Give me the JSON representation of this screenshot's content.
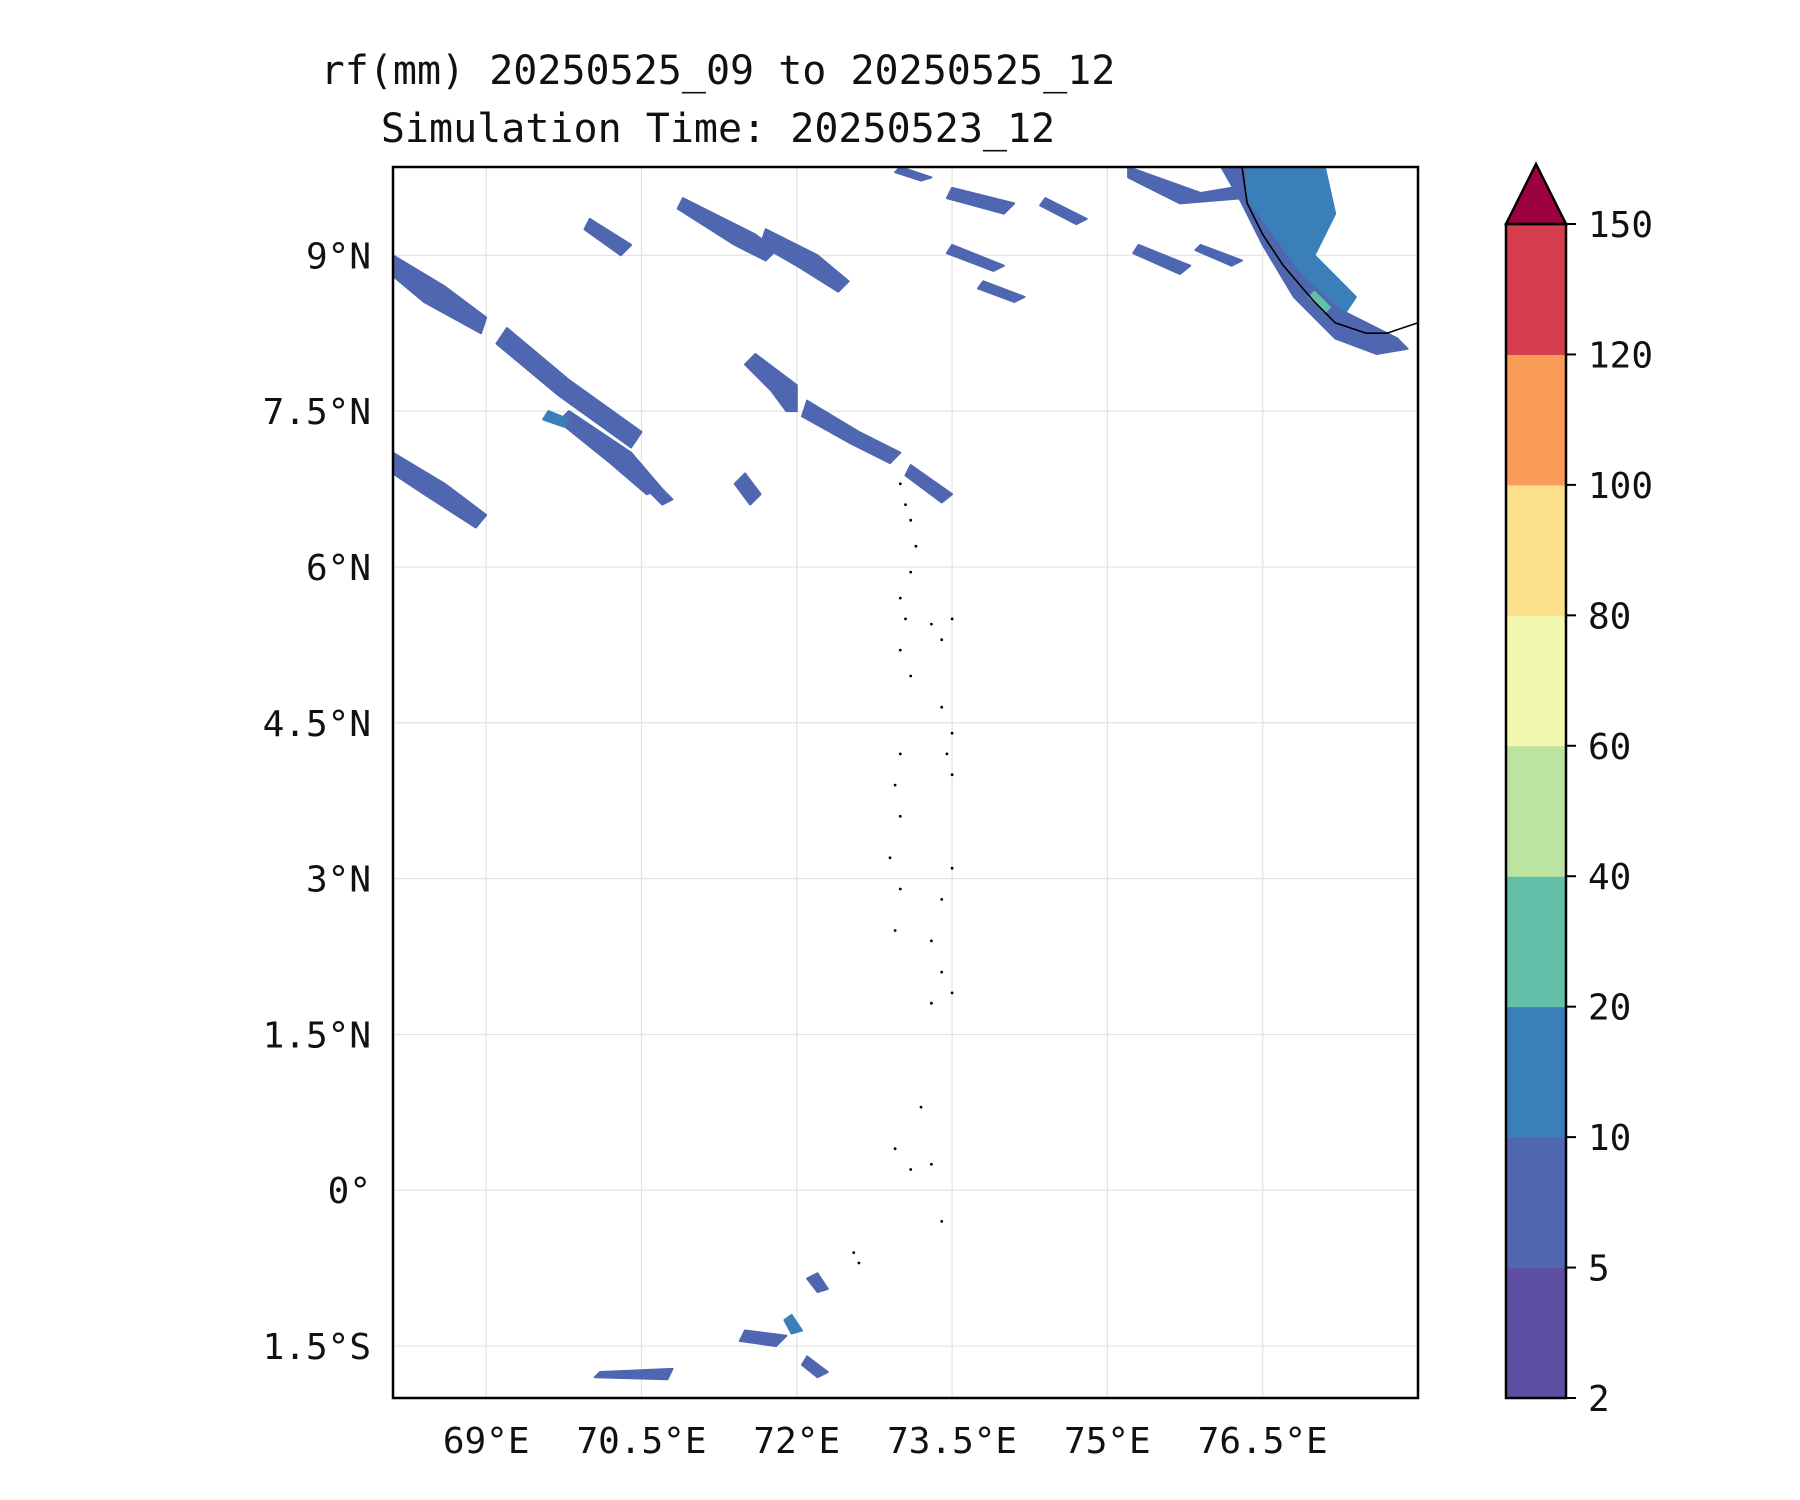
{
  "title": {
    "line1": "rf(mm) 20250525_09 to 20250525_12",
    "line2": "Simulation Time: 20250523_12"
  },
  "map": {
    "lon_range": [
      68.1,
      78.0
    ],
    "lat_range": [
      -2.0,
      9.85
    ],
    "lon_ticks": [
      {
        "value": 69.0,
        "label": "69°E"
      },
      {
        "value": 70.5,
        "label": "70.5°E"
      },
      {
        "value": 72.0,
        "label": "72°E"
      },
      {
        "value": 73.5,
        "label": "73.5°E"
      },
      {
        "value": 75.0,
        "label": "75°E"
      },
      {
        "value": 76.5,
        "label": "76.5°E"
      }
    ],
    "lat_ticks": [
      {
        "value": 9.0,
        "label": "9°N"
      },
      {
        "value": 7.5,
        "label": "7.5°N"
      },
      {
        "value": 6.0,
        "label": "6°N"
      },
      {
        "value": 4.5,
        "label": "4.5°N"
      },
      {
        "value": 3.0,
        "label": "3°N"
      },
      {
        "value": 1.5,
        "label": "1.5°N"
      },
      {
        "value": 0.0,
        "label": "0°"
      },
      {
        "value": -1.5,
        "label": "1.5°S"
      }
    ],
    "gridlines": true
  },
  "colorbar": {
    "levels": [
      "2",
      "5",
      "10",
      "20",
      "40",
      "60",
      "80",
      "100",
      "120",
      "150"
    ],
    "colors": [
      "#5e4fa2",
      "#4f66b0",
      "#3a7fb9",
      "#63bfa8",
      "#bde3a0",
      "#f2f8ad",
      "#fde08b",
      "#f99c57",
      "#d63e4e"
    ],
    "extend_color": "#9e0142",
    "extend": "max"
  },
  "rain_bands": [
    {
      "band": "5-10",
      "path": [
        [
          68.1,
          9.0
        ],
        [
          68.6,
          8.7
        ],
        [
          69.0,
          8.4
        ],
        [
          68.95,
          8.25
        ],
        [
          68.4,
          8.55
        ],
        [
          68.1,
          8.8
        ]
      ]
    },
    {
      "band": "5-10",
      "path": [
        [
          68.1,
          7.1
        ],
        [
          68.6,
          6.8
        ],
        [
          69.0,
          6.5
        ],
        [
          68.9,
          6.38
        ],
        [
          68.4,
          6.7
        ],
        [
          68.1,
          6.9
        ]
      ]
    },
    {
      "band": "5-10",
      "path": [
        [
          69.2,
          8.3
        ],
        [
          69.8,
          7.8
        ],
        [
          70.5,
          7.3
        ],
        [
          70.4,
          7.15
        ],
        [
          69.7,
          7.65
        ],
        [
          69.1,
          8.15
        ]
      ]
    },
    {
      "band": "5-10",
      "path": [
        [
          69.8,
          7.5
        ],
        [
          70.4,
          7.1
        ],
        [
          70.7,
          6.75
        ],
        [
          70.55,
          6.7
        ],
        [
          70.2,
          7.0
        ],
        [
          69.7,
          7.4
        ]
      ]
    },
    {
      "band": "5-10",
      "path": [
        [
          70.0,
          9.35
        ],
        [
          70.4,
          9.1
        ],
        [
          70.3,
          9.0
        ],
        [
          69.95,
          9.25
        ]
      ]
    },
    {
      "band": "5-10",
      "path": [
        [
          70.9,
          9.55
        ],
        [
          71.6,
          9.2
        ],
        [
          71.8,
          9.05
        ],
        [
          71.7,
          8.95
        ],
        [
          71.4,
          9.1
        ],
        [
          70.85,
          9.45
        ]
      ]
    },
    {
      "band": "5-10",
      "path": [
        [
          71.7,
          9.25
        ],
        [
          72.2,
          9.0
        ],
        [
          72.5,
          8.75
        ],
        [
          72.4,
          8.65
        ],
        [
          72.0,
          8.9
        ],
        [
          71.65,
          9.1
        ]
      ]
    },
    {
      "band": "5-10",
      "path": [
        [
          71.6,
          8.05
        ],
        [
          72.0,
          7.75
        ],
        [
          72.0,
          7.5
        ],
        [
          71.9,
          7.5
        ],
        [
          71.75,
          7.7
        ],
        [
          71.5,
          7.95
        ]
      ]
    },
    {
      "band": "5-10",
      "path": [
        [
          72.1,
          7.6
        ],
        [
          72.6,
          7.3
        ],
        [
          73.0,
          7.1
        ],
        [
          72.9,
          7.0
        ],
        [
          72.5,
          7.2
        ],
        [
          72.05,
          7.45
        ]
      ]
    },
    {
      "band": "5-10",
      "path": [
        [
          73.1,
          6.98
        ],
        [
          73.5,
          6.7
        ],
        [
          73.4,
          6.62
        ],
        [
          73.05,
          6.88
        ]
      ]
    },
    {
      "band": "5-10",
      "path": [
        [
          71.5,
          6.9
        ],
        [
          71.65,
          6.7
        ],
        [
          71.55,
          6.6
        ],
        [
          71.4,
          6.8
        ]
      ]
    },
    {
      "band": "5-10",
      "path": [
        [
          70.5,
          6.95
        ],
        [
          70.8,
          6.65
        ],
        [
          70.7,
          6.6
        ],
        [
          70.45,
          6.85
        ]
      ]
    },
    {
      "band": "5-10",
      "path": [
        [
          73.5,
          9.65
        ],
        [
          74.1,
          9.5
        ],
        [
          74.0,
          9.4
        ],
        [
          73.45,
          9.55
        ]
      ]
    },
    {
      "band": "5-10",
      "path": [
        [
          73.0,
          9.85
        ],
        [
          73.3,
          9.75
        ],
        [
          73.2,
          9.72
        ],
        [
          72.95,
          9.8
        ]
      ]
    },
    {
      "band": "5-10",
      "path": [
        [
          74.4,
          9.55
        ],
        [
          74.8,
          9.35
        ],
        [
          74.7,
          9.3
        ],
        [
          74.35,
          9.48
        ]
      ]
    },
    {
      "band": "5-10",
      "path": [
        [
          73.5,
          9.1
        ],
        [
          74.0,
          8.9
        ],
        [
          73.9,
          8.85
        ],
        [
          73.45,
          9.02
        ]
      ]
    },
    {
      "band": "5-10",
      "path": [
        [
          73.8,
          8.75
        ],
        [
          74.2,
          8.6
        ],
        [
          74.1,
          8.55
        ],
        [
          73.75,
          8.68
        ]
      ]
    },
    {
      "band": "5-10",
      "path": [
        [
          75.3,
          9.1
        ],
        [
          75.8,
          8.9
        ],
        [
          75.7,
          8.82
        ],
        [
          75.25,
          9.02
        ]
      ]
    },
    {
      "band": "5-10",
      "path": [
        [
          75.9,
          9.1
        ],
        [
          76.3,
          8.95
        ],
        [
          76.2,
          8.9
        ],
        [
          75.85,
          9.05
        ]
      ]
    },
    {
      "band": "5-10",
      "path": [
        [
          72.2,
          -0.8
        ],
        [
          72.3,
          -0.95
        ],
        [
          72.2,
          -0.98
        ],
        [
          72.1,
          -0.85
        ]
      ]
    },
    {
      "band": "5-10",
      "path": [
        [
          72.1,
          -1.6
        ],
        [
          72.3,
          -1.75
        ],
        [
          72.2,
          -1.8
        ],
        [
          72.05,
          -1.68
        ]
      ]
    },
    {
      "band": "5-10",
      "path": [
        [
          70.1,
          -1.75
        ],
        [
          70.8,
          -1.72
        ],
        [
          70.75,
          -1.82
        ],
        [
          70.05,
          -1.8
        ]
      ]
    },
    {
      "band": "5-10",
      "path": [
        [
          71.5,
          -1.35
        ],
        [
          71.9,
          -1.4
        ],
        [
          71.8,
          -1.5
        ],
        [
          71.45,
          -1.45
        ]
      ]
    },
    {
      "band": "5-10",
      "path": [
        [
          75.2,
          9.85
        ],
        [
          75.9,
          9.6
        ],
        [
          76.5,
          9.7
        ],
        [
          76.3,
          9.55
        ],
        [
          75.7,
          9.5
        ],
        [
          75.2,
          9.75
        ]
      ]
    },
    {
      "band": "5-10",
      "path": [
        [
          76.1,
          9.85
        ],
        [
          76.8,
          9.85
        ],
        [
          76.9,
          9.4
        ],
        [
          77.0,
          8.9
        ],
        [
          77.3,
          8.45
        ],
        [
          77.8,
          8.2
        ],
        [
          77.9,
          8.1
        ],
        [
          77.6,
          8.05
        ],
        [
          77.2,
          8.2
        ],
        [
          76.8,
          8.6
        ],
        [
          76.5,
          9.1
        ],
        [
          76.3,
          9.5
        ]
      ]
    },
    {
      "band": "10-20",
      "path": [
        [
          76.35,
          9.85
        ],
        [
          77.1,
          9.85
        ],
        [
          77.2,
          9.4
        ],
        [
          77.0,
          9.0
        ],
        [
          77.4,
          8.6
        ],
        [
          77.3,
          8.45
        ],
        [
          76.9,
          8.8
        ],
        [
          76.6,
          9.2
        ],
        [
          76.35,
          9.55
        ]
      ]
    },
    {
      "band": "10-20",
      "path": [
        [
          69.6,
          7.5
        ],
        [
          69.8,
          7.42
        ],
        [
          69.75,
          7.35
        ],
        [
          69.55,
          7.42
        ]
      ]
    },
    {
      "band": "10-20",
      "path": [
        [
          71.95,
          -1.2
        ],
        [
          72.05,
          -1.35
        ],
        [
          71.95,
          -1.38
        ],
        [
          71.88,
          -1.25
        ]
      ]
    },
    {
      "band": "20-40",
      "path": [
        [
          77.0,
          8.65
        ],
        [
          77.15,
          8.5
        ],
        [
          77.1,
          8.45
        ],
        [
          76.95,
          8.6
        ]
      ]
    }
  ],
  "coastline": [
    [
      [
        76.3,
        9.85
      ],
      [
        76.35,
        9.5
      ],
      [
        76.5,
        9.2
      ],
      [
        76.7,
        8.9
      ],
      [
        77.0,
        8.55
      ],
      [
        77.2,
        8.35
      ],
      [
        77.5,
        8.25
      ],
      [
        77.7,
        8.25
      ],
      [
        78.0,
        8.35
      ]
    ]
  ],
  "islands": [
    [
      73.0,
      6.8
    ],
    [
      73.05,
      6.6
    ],
    [
      73.1,
      6.45
    ],
    [
      73.15,
      6.2
    ],
    [
      73.1,
      5.95
    ],
    [
      73.0,
      5.7
    ],
    [
      73.05,
      5.5
    ],
    [
      73.3,
      5.45
    ],
    [
      73.4,
      5.3
    ],
    [
      73.5,
      5.5
    ],
    [
      73.0,
      5.2
    ],
    [
      73.1,
      4.95
    ],
    [
      73.4,
      4.65
    ],
    [
      73.5,
      4.4
    ],
    [
      73.45,
      4.2
    ],
    [
      73.5,
      4.0
    ],
    [
      73.0,
      4.2
    ],
    [
      72.95,
      3.9
    ],
    [
      73.0,
      3.6
    ],
    [
      72.9,
      3.2
    ],
    [
      73.0,
      2.9
    ],
    [
      73.4,
      2.8
    ],
    [
      73.5,
      3.1
    ],
    [
      72.95,
      2.5
    ],
    [
      73.3,
      2.4
    ],
    [
      73.4,
      2.1
    ],
    [
      73.5,
      1.9
    ],
    [
      73.3,
      1.8
    ],
    [
      73.2,
      0.8
    ],
    [
      72.95,
      0.4
    ],
    [
      73.1,
      0.2
    ],
    [
      73.3,
      0.25
    ],
    [
      72.55,
      -0.6
    ],
    [
      72.6,
      -0.7
    ],
    [
      73.4,
      -0.3
    ]
  ]
}
